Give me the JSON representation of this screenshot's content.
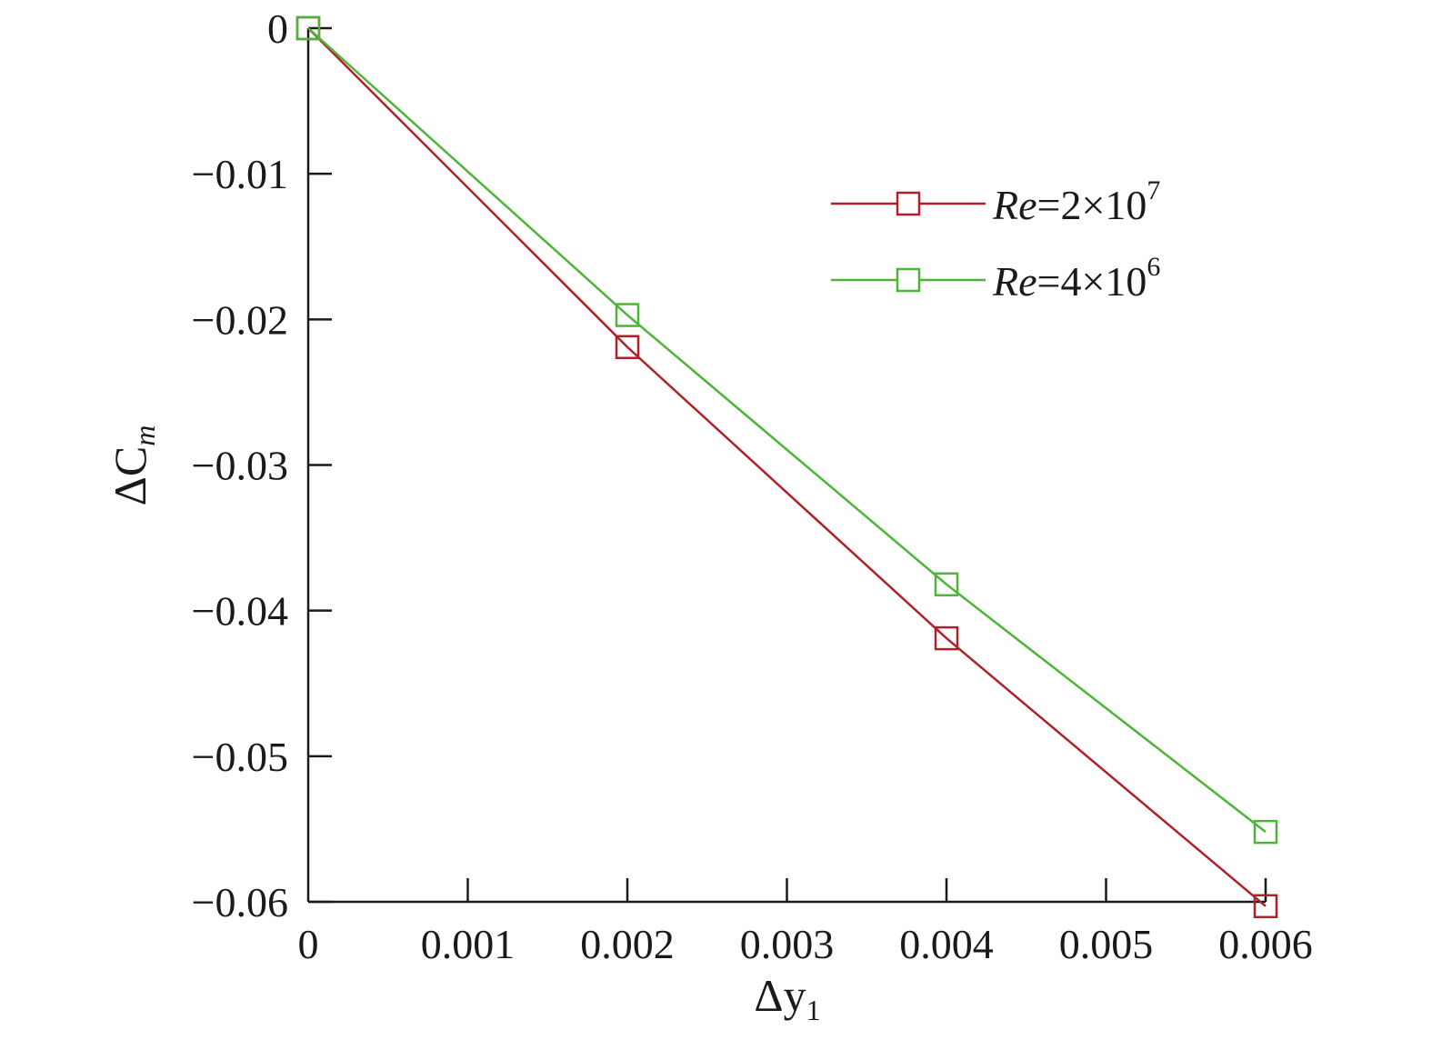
{
  "chart_data": {
    "type": "line",
    "xlabel": "Δy",
    "xlabel_sub": "1",
    "ylabel": "ΔC",
    "ylabel_sub": "m",
    "xlim": [
      0,
      0.006
    ],
    "ylim": [
      -0.06,
      0
    ],
    "x_ticks": [
      "0",
      "0.001",
      "0.002",
      "0.003",
      "0.004",
      "0.005",
      "0.006"
    ],
    "y_ticks": [
      "0",
      "−0.01",
      "−0.02",
      "−0.03",
      "−0.04",
      "−0.05",
      "−0.06"
    ],
    "grid": false,
    "legend_position": "top-right",
    "x": [
      0,
      0.002,
      0.004,
      0.006
    ],
    "series": [
      {
        "name": "Re=2×10⁷",
        "legend_prefix": "Re",
        "legend_rest": "=2×10",
        "legend_sup": "7",
        "color": "#b0202a",
        "marker": "square-open",
        "values": [
          0,
          -0.0219,
          -0.0419,
          -0.0603
        ]
      },
      {
        "name": "Re=4×10⁶",
        "legend_prefix": "Re",
        "legend_rest": "=4×10",
        "legend_sup": "6",
        "color": "#4cb535",
        "marker": "square-open",
        "values": [
          0,
          -0.0197,
          -0.0382,
          -0.0552
        ]
      }
    ]
  }
}
